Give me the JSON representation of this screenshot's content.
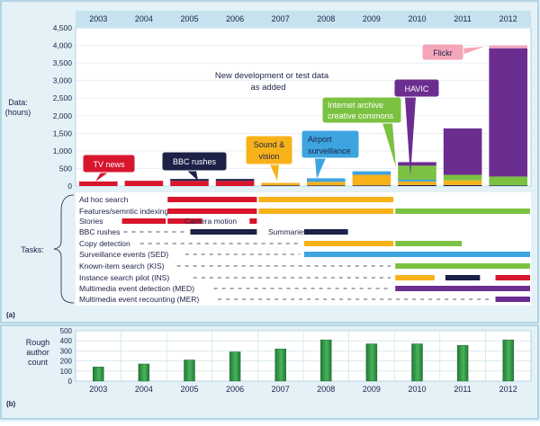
{
  "panel_a_label": "(a)",
  "panel_b_label": "(b)",
  "colors": {
    "background": "#e4f1f7",
    "header_band": "#c6e2ef",
    "red": "#d7162e",
    "navy": "#1b2147",
    "orange": "#f7b21a",
    "blue": "#3ea4e0",
    "green": "#7cc242",
    "purple": "#6c2d91",
    "pink": "#f4a6b8",
    "author_green": "#35984a"
  },
  "chart_data": [
    {
      "type": "bar",
      "title": "",
      "xlabel": "",
      "ylabel": "Data: (hours)",
      "ylabel_lines": [
        "Data:",
        "(hours)"
      ],
      "ylim": [
        0,
        4500
      ],
      "y_ticks": [
        "0",
        "500",
        "1,000",
        "1,500",
        "2,000",
        "2,500",
        "3,000",
        "3,500",
        "4,000",
        "4,500"
      ],
      "categories": [
        "2003",
        "2004",
        "2005",
        "2006",
        "2007",
        "2008",
        "2009",
        "2010",
        "2011",
        "2012"
      ],
      "stacked": true,
      "series": [
        {
          "name": "TV news",
          "color": "#d7162e",
          "values": [
            130,
            150,
            150,
            150,
            0,
            0,
            0,
            0,
            0,
            0
          ]
        },
        {
          "name": "BBC rushes",
          "color": "#1b2147",
          "values": [
            0,
            0,
            50,
            50,
            20,
            20,
            20,
            30,
            30,
            20
          ]
        },
        {
          "name": "Sound & vision",
          "color": "#f7b21a",
          "values": [
            0,
            0,
            0,
            0,
            70,
            100,
            300,
            100,
            130,
            0
          ]
        },
        {
          "name": "Airport surveillance",
          "color": "#3ea4e0",
          "values": [
            0,
            0,
            0,
            0,
            0,
            100,
            100,
            50,
            0,
            0
          ]
        },
        {
          "name": "Internet archive creative commons",
          "color": "#7cc242",
          "values": [
            0,
            0,
            0,
            0,
            0,
            0,
            0,
            400,
            160,
            250
          ]
        },
        {
          "name": "HAVIC",
          "color": "#6c2d91",
          "values": [
            0,
            0,
            0,
            0,
            0,
            0,
            0,
            100,
            1320,
            3650
          ]
        },
        {
          "name": "Flickr",
          "color": "#f4a6b8",
          "values": [
            0,
            0,
            0,
            0,
            0,
            0,
            0,
            0,
            0,
            80
          ]
        }
      ],
      "callouts": [
        {
          "label": "TV news",
          "color": "#d7162e",
          "text_color": "#ffffff"
        },
        {
          "label": "BBC rushes",
          "color": "#1b2147",
          "text_color": "#ffffff"
        },
        {
          "label": "Sound & vision",
          "color": "#f7b21a",
          "text_color": "#1b2147"
        },
        {
          "label": "Airport surveillance",
          "color": "#3ea4e0",
          "text_color": "#1b2147"
        },
        {
          "label": "Internet archive creative commons",
          "color": "#7cc242",
          "text_color": "#ffffff"
        },
        {
          "label": "HAVIC",
          "color": "#6c2d91",
          "text_color": "#ffffff"
        },
        {
          "label": "Flickr",
          "color": "#f4a6b8",
          "text_color": "#1b2147"
        }
      ],
      "annotation": "New development or test data as added",
      "annotation_lines": [
        "New development or test data",
        "as added"
      ]
    },
    {
      "type": "table",
      "row_label": "Tasks:",
      "year_range": [
        "2003",
        "2012"
      ],
      "tasks": [
        {
          "name": "Ad hoc search",
          "segments": [
            {
              "from": 2004.5,
              "to": 2006.5,
              "color": "#d7162e"
            },
            {
              "from": 2006.5,
              "to": 2009.5,
              "color": "#f7b21a"
            }
          ]
        },
        {
          "name": "Features/semntic indexing",
          "segments": [
            {
              "from": 2004.5,
              "to": 2006.5,
              "color": "#d7162e"
            },
            {
              "from": 2006.5,
              "to": 2009.5,
              "color": "#f7b21a"
            },
            {
              "from": 2009.5,
              "to": 2012.5,
              "color": "#7cc242"
            }
          ]
        },
        {
          "name": "Stories",
          "segments": [
            {
              "from": 2003.5,
              "to": 2004.5,
              "color": "#d7162e"
            },
            {
              "from": 2004.5,
              "to": 2005.3,
              "color": "#d7162e"
            }
          ]
        },
        {
          "name": "Camera motion",
          "segments": [
            {
              "from": 2006.3,
              "to": 2006.5,
              "color": "#d7162e"
            }
          ]
        },
        {
          "name": "BBC rushes",
          "segments": [
            {
              "from": 2005.0,
              "to": 2006.5,
              "color": "#1b2147"
            }
          ]
        },
        {
          "name": "Summaries",
          "segments": [
            {
              "from": 2007.5,
              "to": 2008.5,
              "color": "#1b2147"
            }
          ]
        },
        {
          "name": "Copy detection",
          "segments": [
            {
              "from": 2007.5,
              "to": 2009.5,
              "color": "#f7b21a"
            },
            {
              "from": 2009.5,
              "to": 2011.0,
              "color": "#7cc242"
            }
          ]
        },
        {
          "name": "Surveillance events (SED)",
          "segments": [
            {
              "from": 2007.5,
              "to": 2012.5,
              "color": "#3ea4e0"
            }
          ]
        },
        {
          "name": "Known-item search (KIS)",
          "segments": [
            {
              "from": 2009.5,
              "to": 2012.5,
              "color": "#7cc242"
            }
          ]
        },
        {
          "name": "Instance search pilot (INS)",
          "segments": [
            {
              "from": 2009.5,
              "to": 2010.4,
              "color": "#f7b21a"
            },
            {
              "from": 2010.6,
              "to": 2011.4,
              "color": "#1b2147"
            },
            {
              "from": 2011.7,
              "to": 2012.5,
              "color": "#d7162e"
            }
          ]
        },
        {
          "name": "Multimedia event detection (MED)",
          "segments": [
            {
              "from": 2009.5,
              "to": 2012.5,
              "color": "#6c2d91"
            }
          ]
        },
        {
          "name": "Multimedia event recounting (MER)",
          "segments": [
            {
              "from": 2011.7,
              "to": 2012.5,
              "color": "#6c2d91"
            }
          ]
        }
      ]
    },
    {
      "type": "bar",
      "title": "",
      "xlabel": "",
      "ylabel": "Rough author count",
      "ylabel_lines": [
        "Rough",
        "author",
        "count"
      ],
      "ylim": [
        0,
        500
      ],
      "y_ticks": [
        "0",
        "100",
        "200",
        "300",
        "400",
        "500"
      ],
      "categories": [
        "2003",
        "2004",
        "2005",
        "2006",
        "2007",
        "2008",
        "2009",
        "2010",
        "2011",
        "2012"
      ],
      "values": [
        140,
        170,
        210,
        290,
        320,
        410,
        370,
        370,
        355,
        410
      ],
      "grid": true
    }
  ]
}
